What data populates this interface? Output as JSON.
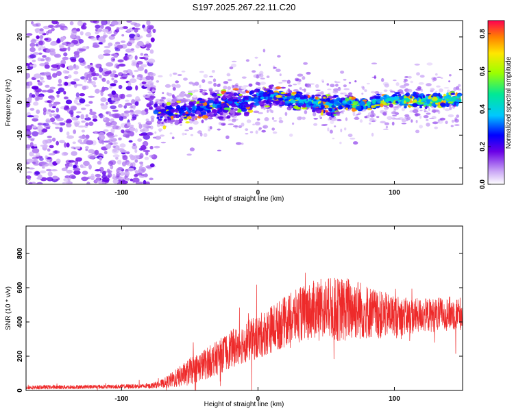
{
  "chart_data": [
    {
      "type": "heatmap",
      "title": "S197.2025.267.22.11.C20",
      "xlabel": "Height of straight line (km)",
      "ylabel": "Frequency (Hz)",
      "xlim": [
        -170,
        150
      ],
      "ylim": [
        -25,
        25
      ],
      "x_ticks": [
        -100,
        0,
        100
      ],
      "x_tick_labels": [
        "-100",
        "0",
        "100"
      ],
      "y_ticks": [
        -20,
        -10,
        0,
        10,
        20
      ],
      "y_tick_labels": [
        "-20",
        "-10",
        "0",
        "10",
        "20"
      ],
      "colorbar": {
        "label": "Normalized spectral amplitude",
        "range": [
          0,
          0.87
        ],
        "ticks": [
          0,
          0.2,
          0.4,
          0.6,
          0.8
        ],
        "tick_labels": [
          "0.0",
          "0.2",
          "0.4",
          "0.6",
          "0.8"
        ]
      },
      "ridge": {
        "x": [
          -70,
          -50,
          -30,
          -10,
          0,
          10,
          25,
          40,
          55,
          65,
          75,
          85,
          95,
          110,
          125,
          140,
          148
        ],
        "freq": [
          -3,
          -2,
          -1,
          0,
          1.5,
          2,
          1,
          0,
          -1,
          0,
          -1,
          0,
          1,
          0.5,
          0.5,
          1,
          1
        ]
      },
      "noise_region_end": -80
    },
    {
      "type": "line",
      "xlabel": "Height of straight line (km)",
      "ylabel": "SNR (10 * v/v)",
      "xlim": [
        -170,
        150
      ],
      "ylim": [
        0,
        960
      ],
      "x_ticks": [
        -100,
        0,
        100
      ],
      "x_tick_labels": [
        "-100",
        "0",
        "100"
      ],
      "y_ticks": [
        0,
        200,
        400,
        600,
        800
      ],
      "y_tick_labels": [
        "0",
        "200",
        "400",
        "600",
        "800"
      ],
      "series": [
        {
          "name": "SNR",
          "color": "#ee2a2a",
          "x": [
            -170,
            -140,
            -110,
            -80,
            -70,
            -60,
            -50,
            -40,
            -30,
            -20,
            -10,
            0,
            10,
            20,
            30,
            40,
            50,
            60,
            70,
            80,
            90,
            100,
            110,
            120,
            130,
            140,
            150
          ],
          "y": [
            18,
            20,
            22,
            25,
            40,
            70,
            110,
            150,
            190,
            240,
            280,
            310,
            360,
            400,
            440,
            470,
            480,
            470,
            480,
            460,
            440,
            440,
            430,
            440,
            440,
            450,
            450
          ],
          "spread": [
            12,
            12,
            12,
            14,
            25,
            55,
            80,
            90,
            100,
            110,
            120,
            130,
            140,
            150,
            160,
            170,
            180,
            190,
            190,
            160,
            140,
            120,
            110,
            100,
            100,
            100,
            100
          ]
        }
      ]
    }
  ]
}
